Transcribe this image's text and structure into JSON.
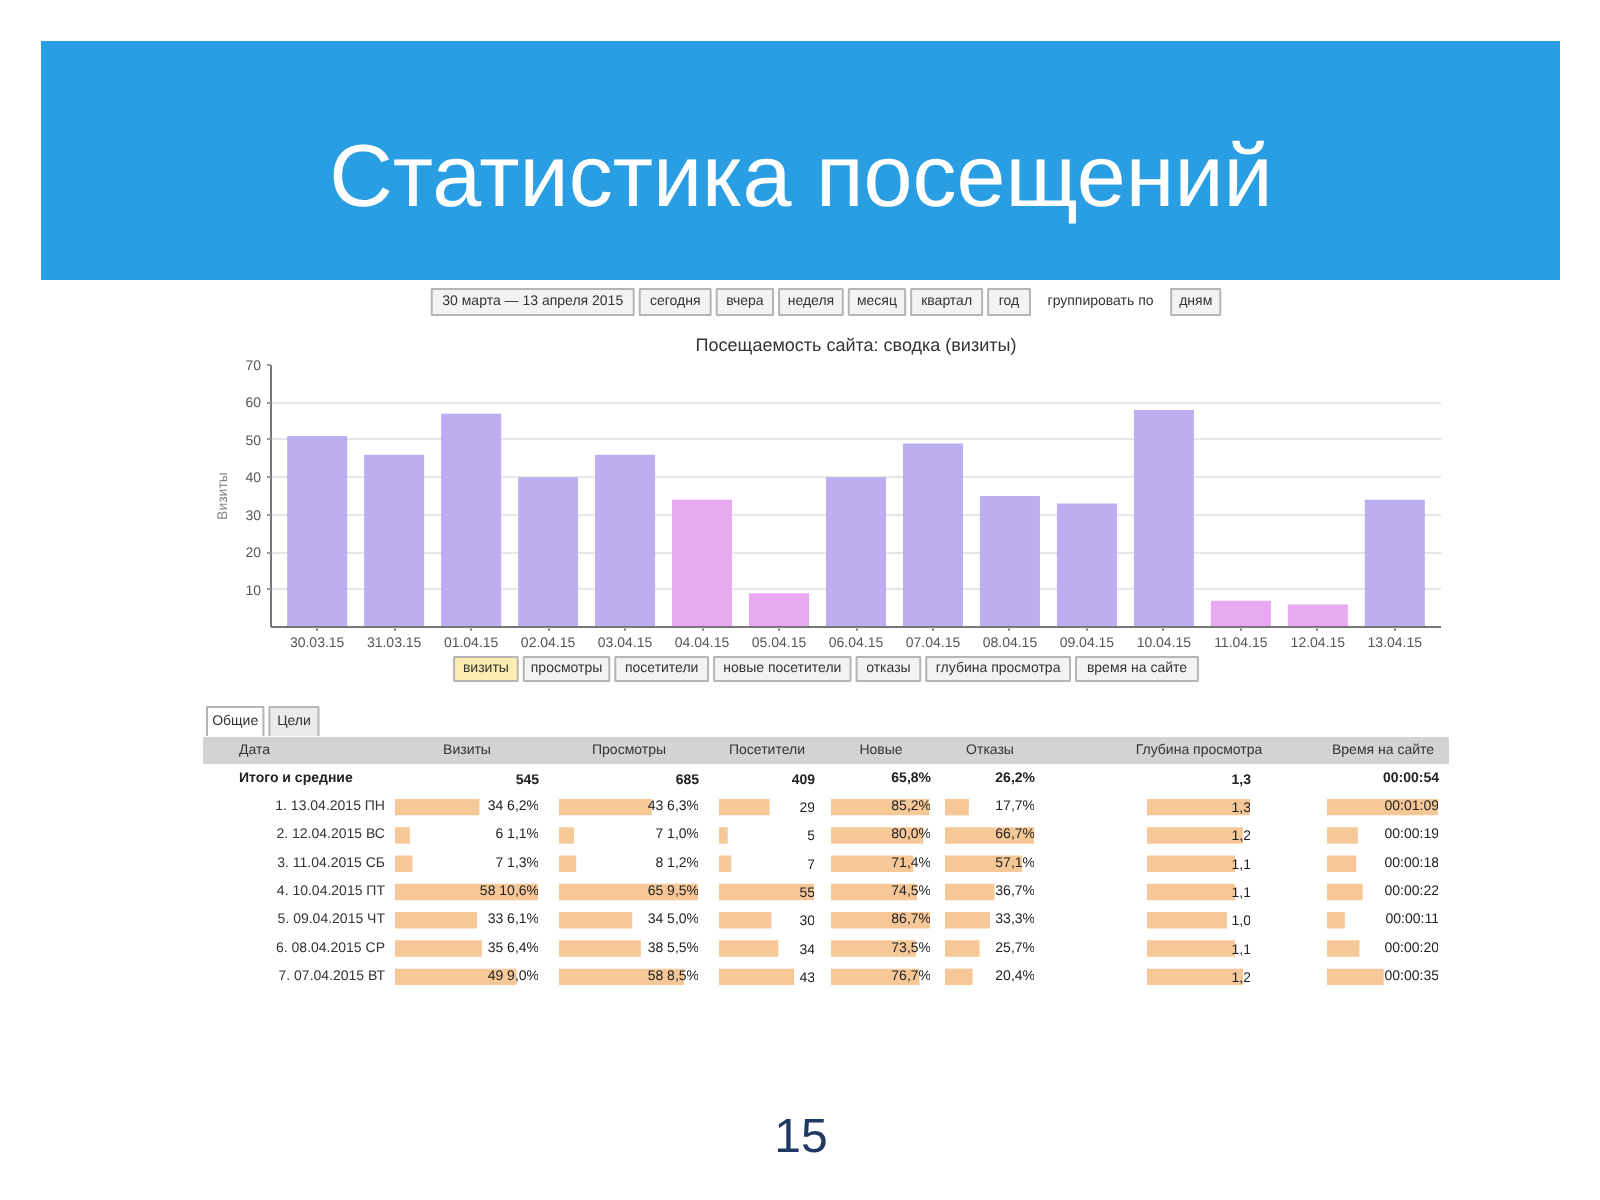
{
  "chart_data": [
    {
      "type": "bar",
      "title": "Статистика посещений",
      "subtitle": "Посещаемость сайта: сводка (визиты)",
      "ylabel": "Визиты",
      "categories": [
        "30.03.15",
        "31.03.15",
        "01.04.15",
        "02.04.15",
        "03.04.15",
        "04.04.15",
        "05.04.15",
        "06.04.15",
        "07.04.15",
        "08.04.15",
        "09.04.15",
        "10.04.15",
        "11.04.15",
        "12.04.15",
        "13.04.15"
      ],
      "values": [
        51,
        46,
        57,
        40,
        46,
        34,
        9,
        40,
        49,
        35,
        33,
        58,
        7,
        6,
        34
      ],
      "colors": [
        "#bdaef2",
        "#bdaef2",
        "#bdaef2",
        "#bdaef2",
        "#bdaef2",
        "#e9a8f2",
        "#e9a8f2",
        "#bdaef2",
        "#bdaef2",
        "#bdaef2",
        "#bdaef2",
        "#bdaef2",
        "#e9a8f2",
        "#e9a8f2",
        "#bdaef2"
      ],
      "ylim": [
        0,
        70
      ],
      "yticks": [
        10,
        20,
        30,
        40,
        50,
        60,
        70
      ],
      "grid": "y",
      "annotations": [
        "30 марта — 13 апреля 2015",
        "сегодня",
        "вчера",
        "неделя",
        "месяц",
        "квартал",
        "год",
        "группировать по",
        "дням",
        "визиты",
        "просмотры",
        "посетители",
        "новые посетители",
        "отказы",
        "глубина просмотра",
        "время на сайте",
        "15"
      ]
    },
    {
      "type": "other",
      "annotations": [
        "Общие",
        "Цели",
        "Дата",
        "Итого и средние"
      ]
    },
    {
      "type": "bar",
      "orientation": "horizontal",
      "title": "Визиты",
      "categories": [
        "1. 13.04.2015 ПН",
        "2. 12.04.2015 ВС",
        "3. 11.04.2015 СБ",
        "4. 10.04.2015 ПТ",
        "5. 09.04.2015 ЧТ",
        "6. 08.04.2015 СР",
        "7. 07.04.2015 ВТ"
      ],
      "values": [
        34,
        6,
        7,
        58,
        33,
        35,
        49
      ],
      "value_labels": [
        "34 6,2%",
        "6 1,1%",
        "7 1,3%",
        "58 10,6%",
        "33 6,1%",
        "35 6,4%",
        "49 9,0%"
      ],
      "color": "#f6c898",
      "xlim": [
        0,
        58
      ],
      "tick_labels": "y",
      "annotations": [
        "545"
      ]
    },
    {
      "type": "bar",
      "orientation": "horizontal",
      "title": "Просмотры",
      "categories": [
        null,
        null,
        null,
        null,
        null,
        null,
        null
      ],
      "values": [
        43,
        7,
        8,
        65,
        34,
        38,
        58
      ],
      "value_labels": [
        "43 6,3%",
        "7 1,0%",
        "8 1,2%",
        "65 9,5%",
        "34 5,0%",
        "38 5,5%",
        "58 8,5%"
      ],
      "color": "#f6c898",
      "xlim": [
        0,
        65
      ],
      "annotations": [
        "685"
      ]
    },
    {
      "type": "bar",
      "orientation": "horizontal",
      "title": "Посетители",
      "categories": [
        null,
        null,
        null,
        null,
        null,
        null,
        null
      ],
      "values": [
        29,
        5,
        7,
        55,
        30,
        34,
        43
      ],
      "value_labels": [
        "29",
        "5",
        "7",
        "55",
        "30",
        "34",
        "43"
      ],
      "color": "#f6c898",
      "xlim": [
        0,
        55
      ],
      "annotations": [
        "409"
      ]
    },
    {
      "type": "bar",
      "orientation": "horizontal",
      "title": "Новые",
      "categories": [
        null,
        null,
        null,
        null,
        null,
        null,
        null
      ],
      "values": [
        85.2,
        80.0,
        71.4,
        74.5,
        86.7,
        73.5,
        76.7
      ],
      "value_labels": [
        "85,2%",
        "80,0%",
        "71,4%",
        "74,5%",
        "86,7%",
        "73,5%",
        "76,7%"
      ],
      "color": "#f6c898",
      "xlim": [
        0,
        86.7
      ],
      "annotations": [
        "65,8%"
      ]
    },
    {
      "type": "bar",
      "orientation": "horizontal",
      "title": "Отказы",
      "categories": [
        null,
        null,
        null,
        null,
        null,
        null,
        null
      ],
      "values": [
        17.7,
        66.7,
        57.1,
        36.7,
        33.3,
        25.7,
        20.4
      ],
      "value_labels": [
        "17,7%",
        "66,7%",
        "57,1%",
        "36,7%",
        "33,3%",
        "25,7%",
        "20,4%"
      ],
      "color": "#f6c898",
      "xlim": [
        0,
        66.7
      ],
      "annotations": [
        "26,2%"
      ]
    },
    {
      "type": "bar",
      "orientation": "horizontal",
      "title": "Глубина просмотра",
      "categories": [
        null,
        null,
        null,
        null,
        null,
        null,
        null
      ],
      "values": [
        1.3,
        1.2,
        1.1,
        1.1,
        1.0,
        1.1,
        1.2
      ],
      "value_labels": [
        "1,3",
        "1,2",
        "1,1",
        "1,1",
        "1,0",
        "1,1",
        "1,2"
      ],
      "color": "#f6c898",
      "xlim": [
        0,
        1.3
      ],
      "annotations": [
        "1,3"
      ]
    },
    {
      "type": "bar",
      "orientation": "horizontal",
      "title": "Время на сайте",
      "categories": [
        null,
        null,
        null,
        null,
        null,
        null,
        null
      ],
      "values": [
        69,
        19,
        18,
        22,
        11,
        20,
        35
      ],
      "value_labels": [
        "00:01:09",
        "00:00:19",
        "00:00:18",
        "00:00:22",
        "00:00:11",
        "00:00:20",
        "00:00:35"
      ],
      "color": "#f6c898",
      "xlim": [
        0,
        69
      ],
      "annotations": [
        "00:00:54"
      ]
    }
  ]
}
